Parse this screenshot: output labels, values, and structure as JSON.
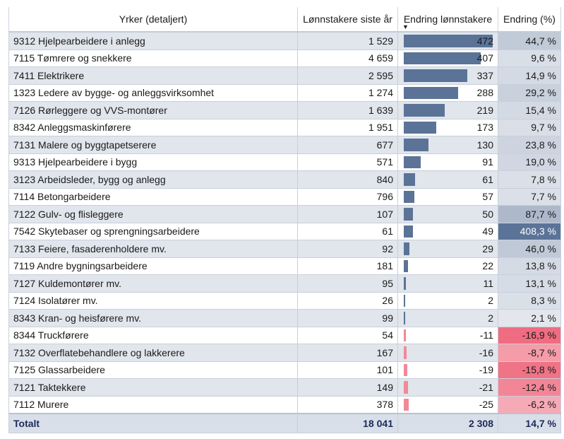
{
  "chart_data": {
    "type": "table",
    "columns": [
      "Yrker (detaljert)",
      "Lønnstakere siste år",
      "Endring lønnstakere",
      "Endring (%)"
    ],
    "sort_indicator": "▼",
    "rows": [
      {
        "occupation": "9312 Hjelpearbeidere i anlegg",
        "workers": "1 529",
        "change": 472,
        "change_label": "472",
        "pct": 44.7,
        "pct_label": "44,7 %"
      },
      {
        "occupation": "7115 Tømrere og snekkere",
        "workers": "4 659",
        "change": 407,
        "change_label": "407",
        "pct": 9.6,
        "pct_label": "9,6 %"
      },
      {
        "occupation": "7411 Elektrikere",
        "workers": "2 595",
        "change": 337,
        "change_label": "337",
        "pct": 14.9,
        "pct_label": "14,9 %"
      },
      {
        "occupation": "1323 Ledere av bygge- og anleggsvirksomhet",
        "workers": "1 274",
        "change": 288,
        "change_label": "288",
        "pct": 29.2,
        "pct_label": "29,2 %"
      },
      {
        "occupation": "7126 Rørleggere og VVS-montører",
        "workers": "1 639",
        "change": 219,
        "change_label": "219",
        "pct": 15.4,
        "pct_label": "15,4 %"
      },
      {
        "occupation": "8342 Anleggsmaskinførere",
        "workers": "1 951",
        "change": 173,
        "change_label": "173",
        "pct": 9.7,
        "pct_label": "9,7 %"
      },
      {
        "occupation": "7131 Malere og byggtapetserere",
        "workers": "677",
        "change": 130,
        "change_label": "130",
        "pct": 23.8,
        "pct_label": "23,8 %"
      },
      {
        "occupation": "9313 Hjelpearbeidere i bygg",
        "workers": "571",
        "change": 91,
        "change_label": "91",
        "pct": 19.0,
        "pct_label": "19,0 %"
      },
      {
        "occupation": "3123 Arbeidsleder, bygg og anlegg",
        "workers": "840",
        "change": 61,
        "change_label": "61",
        "pct": 7.8,
        "pct_label": "7,8 %"
      },
      {
        "occupation": "7114 Betongarbeidere",
        "workers": "796",
        "change": 57,
        "change_label": "57",
        "pct": 7.7,
        "pct_label": "7,7 %"
      },
      {
        "occupation": "7122 Gulv- og flisleggere",
        "workers": "107",
        "change": 50,
        "change_label": "50",
        "pct": 87.7,
        "pct_label": "87,7 %"
      },
      {
        "occupation": "7542 Skytebaser og sprengningsarbeidere",
        "workers": "61",
        "change": 49,
        "change_label": "49",
        "pct": 408.3,
        "pct_label": "408,3 %"
      },
      {
        "occupation": "7133 Feiere, fasaderenholdere mv.",
        "workers": "92",
        "change": 29,
        "change_label": "29",
        "pct": 46.0,
        "pct_label": "46,0 %"
      },
      {
        "occupation": "7119 Andre bygningsarbeidere",
        "workers": "181",
        "change": 22,
        "change_label": "22",
        "pct": 13.8,
        "pct_label": "13,8 %"
      },
      {
        "occupation": "7127 Kuldemontører mv.",
        "workers": "95",
        "change": 11,
        "change_label": "11",
        "pct": 13.1,
        "pct_label": "13,1 %"
      },
      {
        "occupation": "7124 Isolatører mv.",
        "workers": "26",
        "change": 2,
        "change_label": "2",
        "pct": 8.3,
        "pct_label": "8,3 %"
      },
      {
        "occupation": "8343 Kran- og heisførere mv.",
        "workers": "99",
        "change": 2,
        "change_label": "2",
        "pct": 2.1,
        "pct_label": "2,1 %"
      },
      {
        "occupation": "8344 Truckførere",
        "workers": "54",
        "change": -11,
        "change_label": "-11",
        "pct": -16.9,
        "pct_label": "-16,9 %"
      },
      {
        "occupation": "7132 Overflatebehandlere og lakkerere",
        "workers": "167",
        "change": -16,
        "change_label": "-16",
        "pct": -8.7,
        "pct_label": "-8,7 %"
      },
      {
        "occupation": "7125 Glassarbeidere",
        "workers": "101",
        "change": -19,
        "change_label": "-19",
        "pct": -15.8,
        "pct_label": "-15,8 %"
      },
      {
        "occupation": "7121 Taktekkere",
        "workers": "149",
        "change": -21,
        "change_label": "-21",
        "pct": -12.4,
        "pct_label": "-12,4 %"
      },
      {
        "occupation": "7112 Murere",
        "workers": "378",
        "change": -25,
        "change_label": "-25",
        "pct": -6.2,
        "pct_label": "-6,2 %"
      }
    ],
    "total": {
      "label": "Totalt",
      "workers": "18 041",
      "change": "2 308",
      "pct": "14,7 %"
    },
    "colors": {
      "positive_bar": "#5b7397",
      "negative_bar": "#f08a98",
      "positive_heat": "#5b7397",
      "negative_heat": "#ee5c72"
    }
  }
}
